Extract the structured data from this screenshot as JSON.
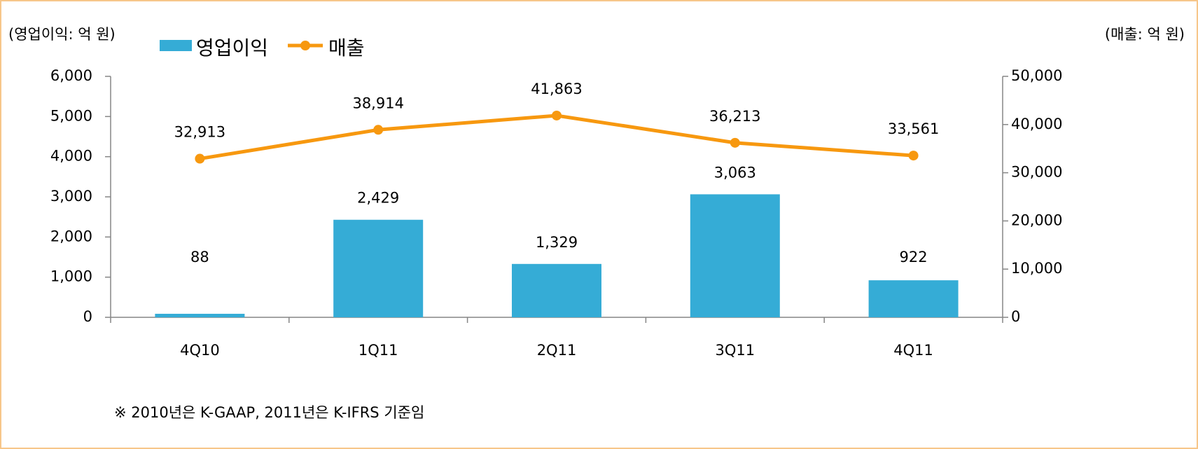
{
  "chart_data": {
    "type": "bar",
    "left_unit": "(영업이익: 억 원)",
    "right_unit": "(매출: 억 원)",
    "note": "※ 2010년은 K-GAAP, 2011년은 K-IFRS 기준임",
    "categories": [
      "4Q10",
      "1Q11",
      "2Q11",
      "3Q11",
      "4Q11"
    ],
    "series": [
      {
        "name": "영업이익",
        "type": "bar",
        "color": "#35acd6",
        "values": [
          88,
          2429,
          1329,
          3063,
          922
        ],
        "value_labels": [
          "88",
          "2,429",
          "1,329",
          "3,063",
          "922"
        ]
      },
      {
        "name": "매출",
        "type": "line",
        "axis": "y2",
        "color": "#f7980f",
        "values": [
          32913,
          38914,
          41863,
          36213,
          33561
        ],
        "value_labels": [
          "32,913",
          "38,914",
          "41,863",
          "36,213",
          "33,561"
        ]
      }
    ],
    "ylim": [
      0,
      6000
    ],
    "yticks": [
      0,
      {
        "value": 1000,
        "label": "1,000"
      },
      {
        "value": 2000,
        "label": "2,000"
      },
      {
        "value": 3000,
        "label": "3,000"
      },
      {
        "value": 4000,
        "label": "4,000"
      },
      {
        "value": 5000,
        "label": "5,000"
      },
      {
        "value": 6000,
        "label": "6,000"
      }
    ],
    "y2lim": [
      0,
      50000
    ],
    "y2ticks": [
      0,
      {
        "value": 10000,
        "label": "10,000"
      },
      {
        "value": 20000,
        "label": "20,000"
      },
      {
        "value": 30000,
        "label": "30,000"
      },
      {
        "value": 40000,
        "label": "40,000"
      },
      {
        "value": 50000,
        "label": "50,000"
      }
    ]
  }
}
